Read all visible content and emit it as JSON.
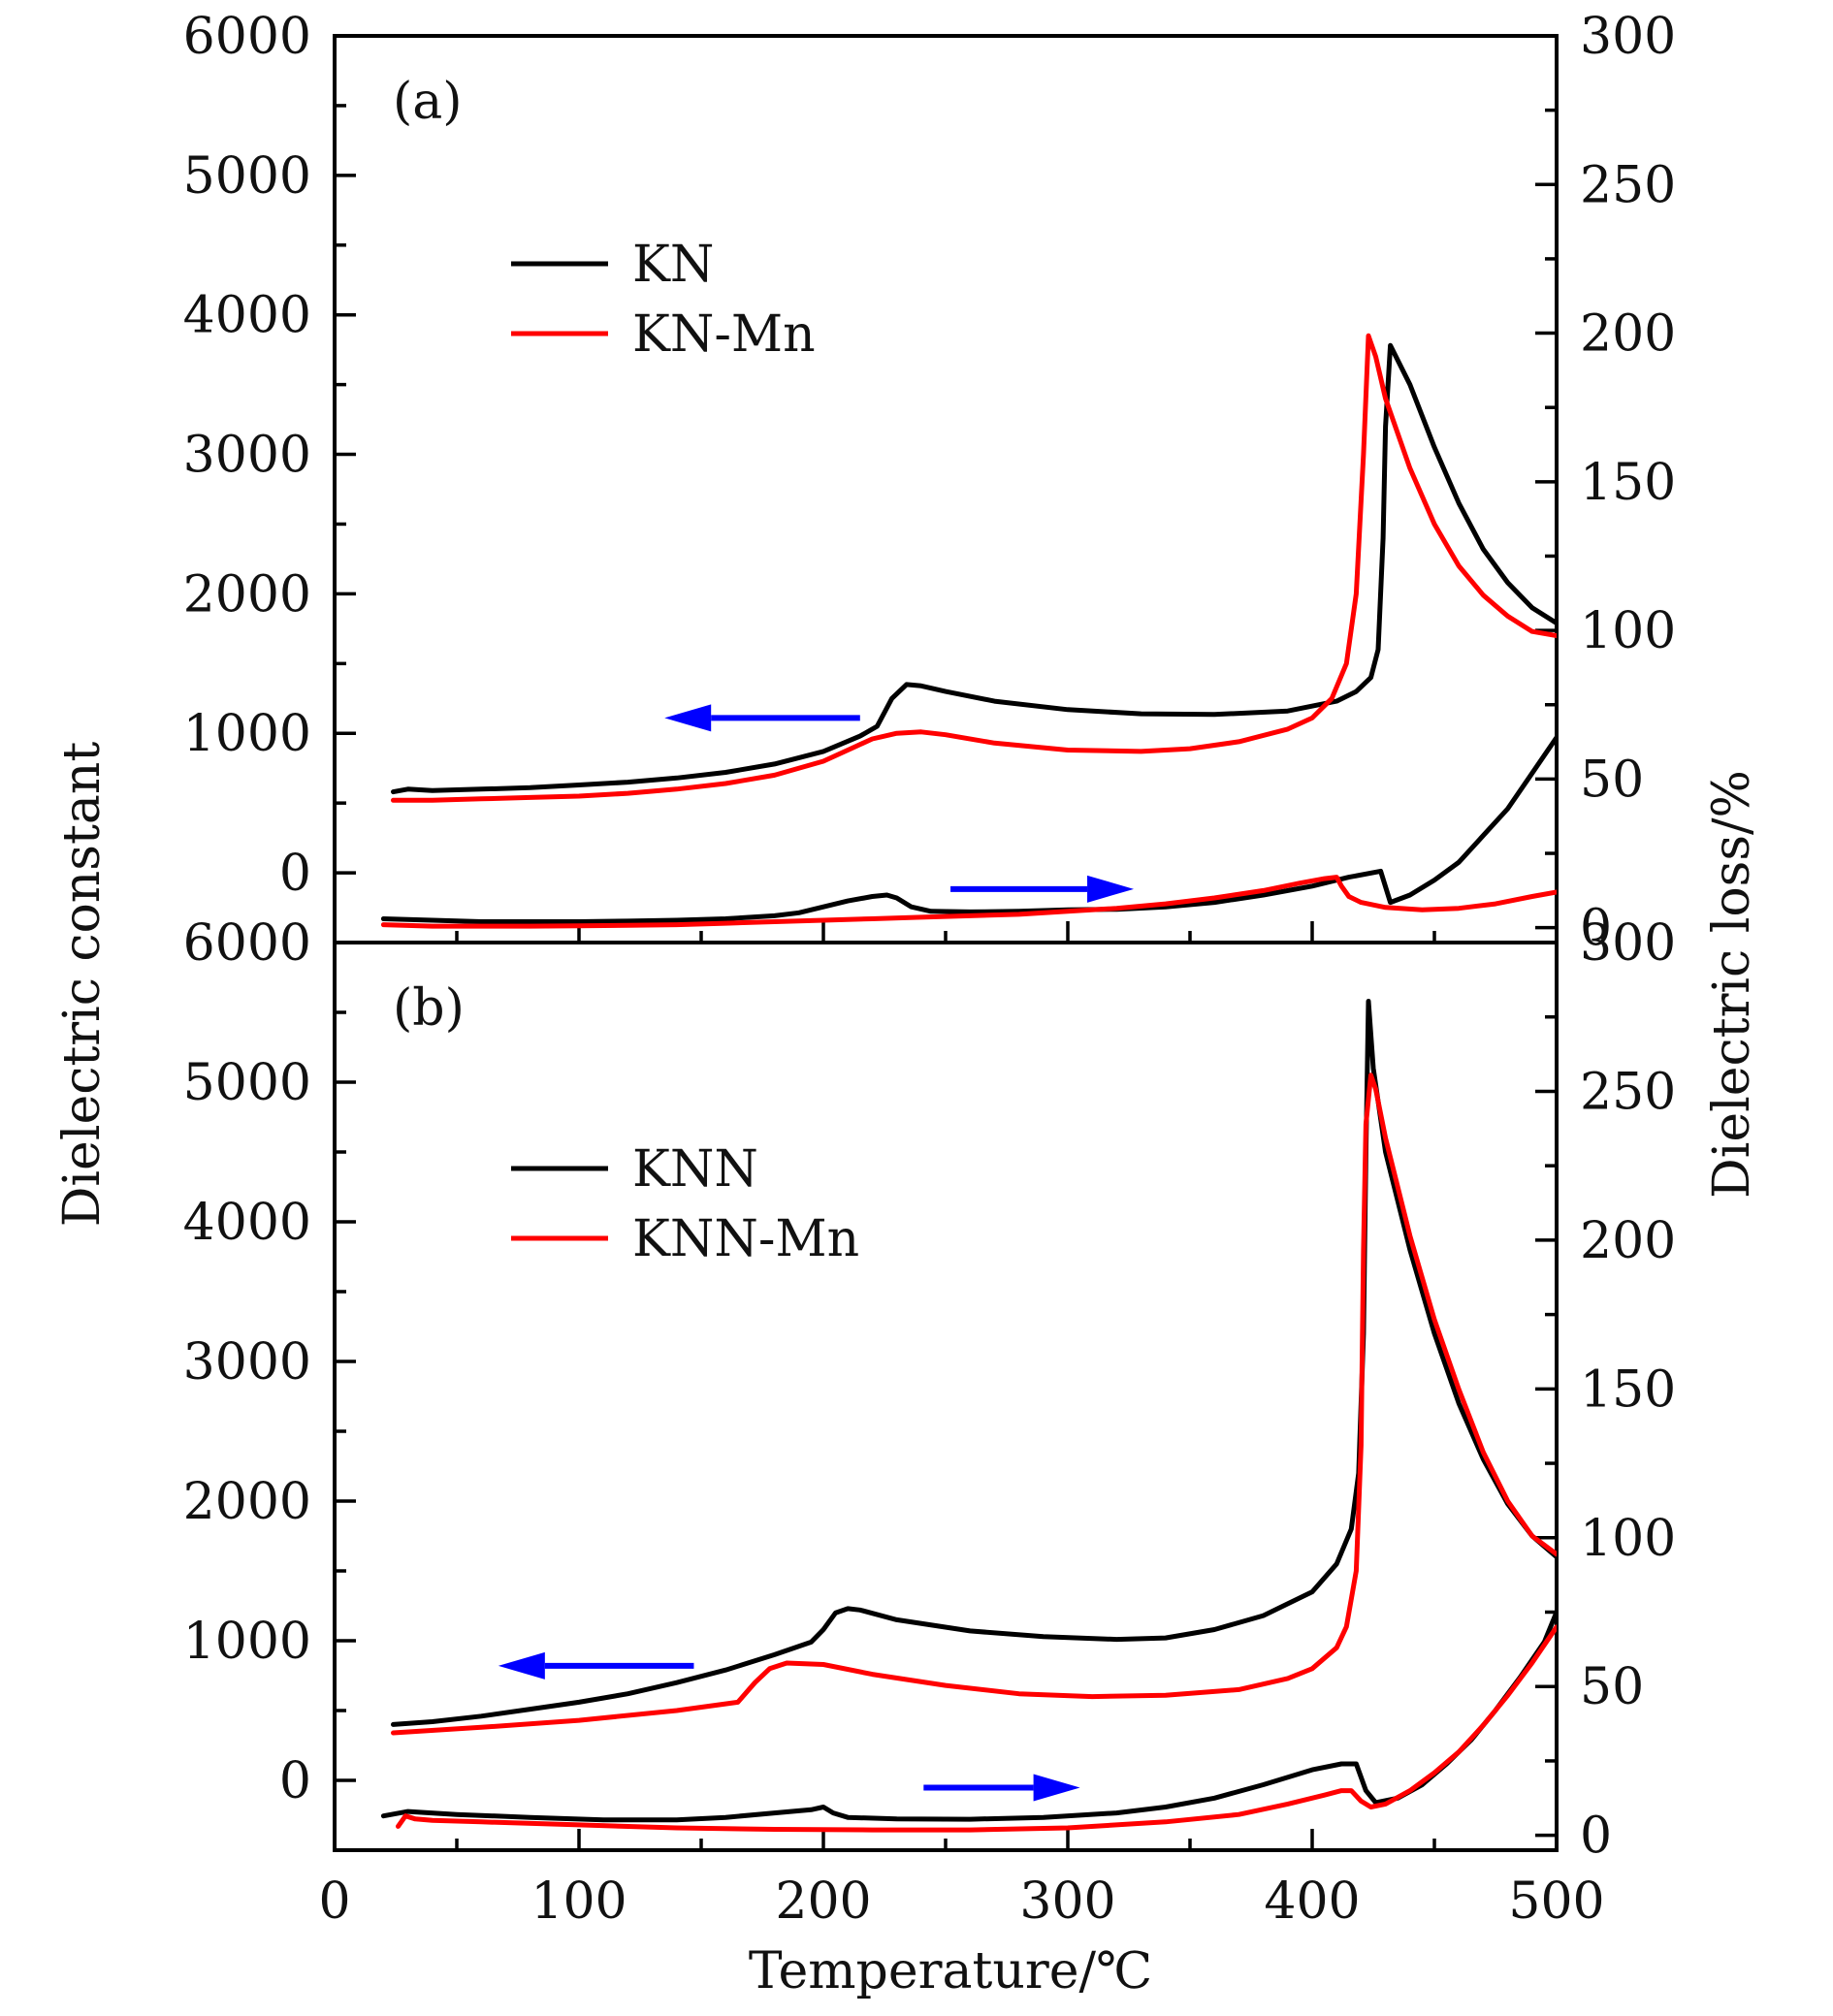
{
  "chart_data": [
    {
      "type": "line",
      "panel_label": "(a)",
      "xlabel": "Temperature/℃",
      "ylabel": "Dielectric constant",
      "y2label": "Dielectric loss/%",
      "xlim": [
        0,
        500
      ],
      "ylim": [
        -500,
        6000
      ],
      "y2lim": [
        -5,
        300
      ],
      "x_ticks": [
        0,
        100,
        200,
        300,
        400,
        500
      ],
      "y_ticks": [
        0,
        1000,
        2000,
        3000,
        4000,
        5000,
        6000
      ],
      "y2_ticks": [
        0,
        50,
        100,
        150,
        200,
        250,
        300
      ],
      "grid": false,
      "legend_position": "upper-left",
      "legend": [
        {
          "name": "KN",
          "color": "#000000"
        },
        {
          "name": "KN-Mn",
          "color": "#ff0000"
        }
      ],
      "annotations": [
        {
          "type": "arrow",
          "direction": "left",
          "color": "#0000ff",
          "x_from": 215,
          "x_to": 135,
          "y": 1110,
          "axis": "left"
        },
        {
          "type": "arrow",
          "direction": "right",
          "color": "#0000ff",
          "x_from": 252,
          "x_to": 327,
          "y": 13,
          "axis": "right"
        }
      ],
      "series": [
        {
          "name": "KN",
          "quantity": "Dielectric constant",
          "axis": "left",
          "color": "#000000",
          "x": [
            24,
            30,
            40,
            60,
            80,
            100,
            120,
            140,
            160,
            180,
            200,
            215,
            222,
            228,
            234,
            240,
            250,
            270,
            300,
            330,
            360,
            390,
            410,
            418,
            424,
            427,
            429,
            430,
            432,
            440,
            450,
            460,
            470,
            480,
            490,
            500
          ],
          "y": [
            580,
            600,
            590,
            600,
            610,
            630,
            650,
            680,
            720,
            780,
            870,
            980,
            1050,
            1250,
            1350,
            1340,
            1300,
            1230,
            1170,
            1140,
            1135,
            1160,
            1230,
            1300,
            1400,
            1600,
            2400,
            3200,
            3780,
            3500,
            3050,
            2650,
            2320,
            2080,
            1900,
            1790
          ]
        },
        {
          "name": "KN-Mn",
          "quantity": "Dielectric constant",
          "axis": "left",
          "color": "#ff0000",
          "x": [
            24,
            40,
            60,
            80,
            100,
            120,
            140,
            160,
            180,
            200,
            210,
            220,
            230,
            240,
            250,
            270,
            300,
            330,
            350,
            370,
            390,
            400,
            408,
            414,
            418,
            421,
            423,
            426,
            430,
            440,
            450,
            460,
            470,
            480,
            490,
            500
          ],
          "y": [
            520,
            520,
            530,
            540,
            550,
            570,
            600,
            640,
            700,
            800,
            880,
            960,
            1000,
            1010,
            990,
            930,
            880,
            870,
            890,
            940,
            1030,
            1110,
            1250,
            1500,
            2000,
            3000,
            3850,
            3700,
            3400,
            2900,
            2500,
            2200,
            1990,
            1840,
            1730,
            1700
          ]
        },
        {
          "name": "KN",
          "quantity": "Dielectric loss",
          "axis": "right",
          "color": "#000000",
          "x": [
            20,
            40,
            60,
            80,
            100,
            120,
            140,
            160,
            180,
            190,
            200,
            210,
            220,
            226,
            230,
            236,
            244,
            260,
            280,
            300,
            320,
            340,
            360,
            380,
            400,
            415,
            428,
            432,
            440,
            450,
            460,
            470,
            480,
            490,
            500
          ],
          "y": [
            3,
            2.5,
            2,
            2,
            2,
            2.2,
            2.5,
            3,
            4,
            5,
            7,
            9,
            10.5,
            11,
            10,
            7,
            5.5,
            5.3,
            5.5,
            6,
            6.2,
            7,
            8.5,
            11,
            14,
            17,
            19,
            8.5,
            11,
            16,
            22,
            31,
            40,
            52,
            64
          ]
        },
        {
          "name": "KN-Mn",
          "quantity": "Dielectric loss",
          "axis": "right",
          "color": "#ff0000",
          "x": [
            20,
            40,
            60,
            80,
            100,
            120,
            140,
            160,
            180,
            200,
            220,
            240,
            260,
            280,
            300,
            320,
            340,
            360,
            380,
            395,
            405,
            410,
            412,
            415,
            420,
            430,
            445,
            460,
            475,
            490,
            500
          ],
          "y": [
            1,
            0.5,
            0.5,
            0.5,
            0.6,
            0.8,
            1,
            1.5,
            2,
            2.5,
            3,
            3.5,
            4,
            4.5,
            5.5,
            6.5,
            8,
            10,
            12.5,
            15,
            16.5,
            17,
            14,
            10.5,
            8.5,
            6.8,
            6,
            6.5,
            8,
            10.5,
            12
          ]
        }
      ]
    },
    {
      "type": "line",
      "panel_label": "(b)",
      "xlabel": "Temperature/℃",
      "ylabel": "Dielectric constant",
      "y2label": "Dielectric loss/%",
      "xlim": [
        0,
        500
      ],
      "ylim": [
        -500,
        6000
      ],
      "y2lim": [
        -5,
        300
      ],
      "x_ticks": [
        0,
        100,
        200,
        300,
        400,
        500
      ],
      "y_ticks": [
        0,
        1000,
        2000,
        3000,
        4000,
        5000,
        6000
      ],
      "y2_ticks": [
        0,
        50,
        100,
        150,
        200,
        250,
        300
      ],
      "grid": false,
      "legend_position": "upper-left",
      "legend": [
        {
          "name": "KNN",
          "color": "#000000"
        },
        {
          "name": "KNN-Mn",
          "color": "#ff0000"
        }
      ],
      "annotations": [
        {
          "type": "arrow",
          "direction": "left",
          "color": "#0000ff",
          "x_from": 147,
          "x_to": 67,
          "y": 820,
          "axis": "left"
        },
        {
          "type": "arrow",
          "direction": "right",
          "color": "#0000ff",
          "x_from": 241,
          "x_to": 305,
          "y": 16,
          "axis": "right"
        }
      ],
      "series": [
        {
          "name": "KNN",
          "quantity": "Dielectric constant",
          "axis": "left",
          "color": "#000000",
          "x": [
            24,
            40,
            60,
            80,
            100,
            120,
            140,
            160,
            180,
            195,
            200,
            205,
            210,
            215,
            230,
            260,
            290,
            320,
            340,
            360,
            380,
            400,
            410,
            416,
            419,
            421,
            422,
            423,
            425,
            430,
            440,
            450,
            460,
            470,
            480,
            490,
            500
          ],
          "y": [
            400,
            420,
            460,
            510,
            560,
            620,
            700,
            790,
            900,
            990,
            1080,
            1200,
            1230,
            1220,
            1150,
            1070,
            1030,
            1010,
            1020,
            1080,
            1180,
            1350,
            1550,
            1800,
            2200,
            3200,
            4500,
            5580,
            5100,
            4500,
            3800,
            3200,
            2700,
            2300,
            1980,
            1750,
            1600
          ]
        },
        {
          "name": "KNN-Mn",
          "quantity": "Dielectric constant",
          "axis": "left",
          "color": "#ff0000",
          "x": [
            24,
            60,
            100,
            140,
            165,
            172,
            178,
            185,
            200,
            220,
            250,
            280,
            310,
            340,
            370,
            390,
            400,
            410,
            414,
            418,
            420,
            421,
            422,
            424,
            426,
            430,
            440,
            450,
            460,
            470,
            480,
            490,
            500
          ],
          "y": [
            340,
            380,
            430,
            500,
            560,
            700,
            800,
            840,
            830,
            760,
            680,
            620,
            600,
            610,
            650,
            730,
            800,
            950,
            1100,
            1500,
            2400,
            3800,
            4700,
            5050,
            4950,
            4600,
            3900,
            3300,
            2800,
            2350,
            2000,
            1750,
            1620
          ]
        },
        {
          "name": "KNN",
          "quantity": "Dielectric loss",
          "axis": "right",
          "color": "#000000",
          "x": [
            20,
            30,
            50,
            80,
            110,
            140,
            160,
            180,
            195,
            200,
            204,
            210,
            230,
            260,
            290,
            320,
            340,
            360,
            380,
            400,
            412,
            418,
            422,
            426,
            435,
            445,
            455,
            465,
            475,
            485,
            495,
            500
          ],
          "y": [
            6.5,
            8,
            7,
            6,
            5.2,
            5.2,
            6,
            7.5,
            8.6,
            9.5,
            7.5,
            6,
            5.5,
            5.4,
            6,
            7.5,
            9.5,
            12.5,
            17,
            22,
            24,
            24,
            15,
            11,
            12.5,
            17,
            24,
            32,
            42,
            53,
            65,
            75
          ]
        },
        {
          "name": "KNN-Mn",
          "quantity": "Dielectric loss",
          "axis": "right",
          "color": "#ff0000",
          "x": [
            26,
            29,
            33,
            40,
            60,
            100,
            140,
            180,
            220,
            260,
            300,
            340,
            370,
            390,
            405,
            412,
            416,
            420,
            424,
            430,
            440,
            450,
            460,
            470,
            480,
            490,
            500
          ],
          "y": [
            3,
            6.5,
            5.5,
            5,
            4.5,
            3.5,
            2.5,
            2,
            1.8,
            1.8,
            2.5,
            4.5,
            7,
            10.5,
            13.5,
            15,
            15,
            11.5,
            9.5,
            10.5,
            15,
            21,
            28,
            37,
            47,
            58,
            70
          ]
        }
      ]
    }
  ]
}
